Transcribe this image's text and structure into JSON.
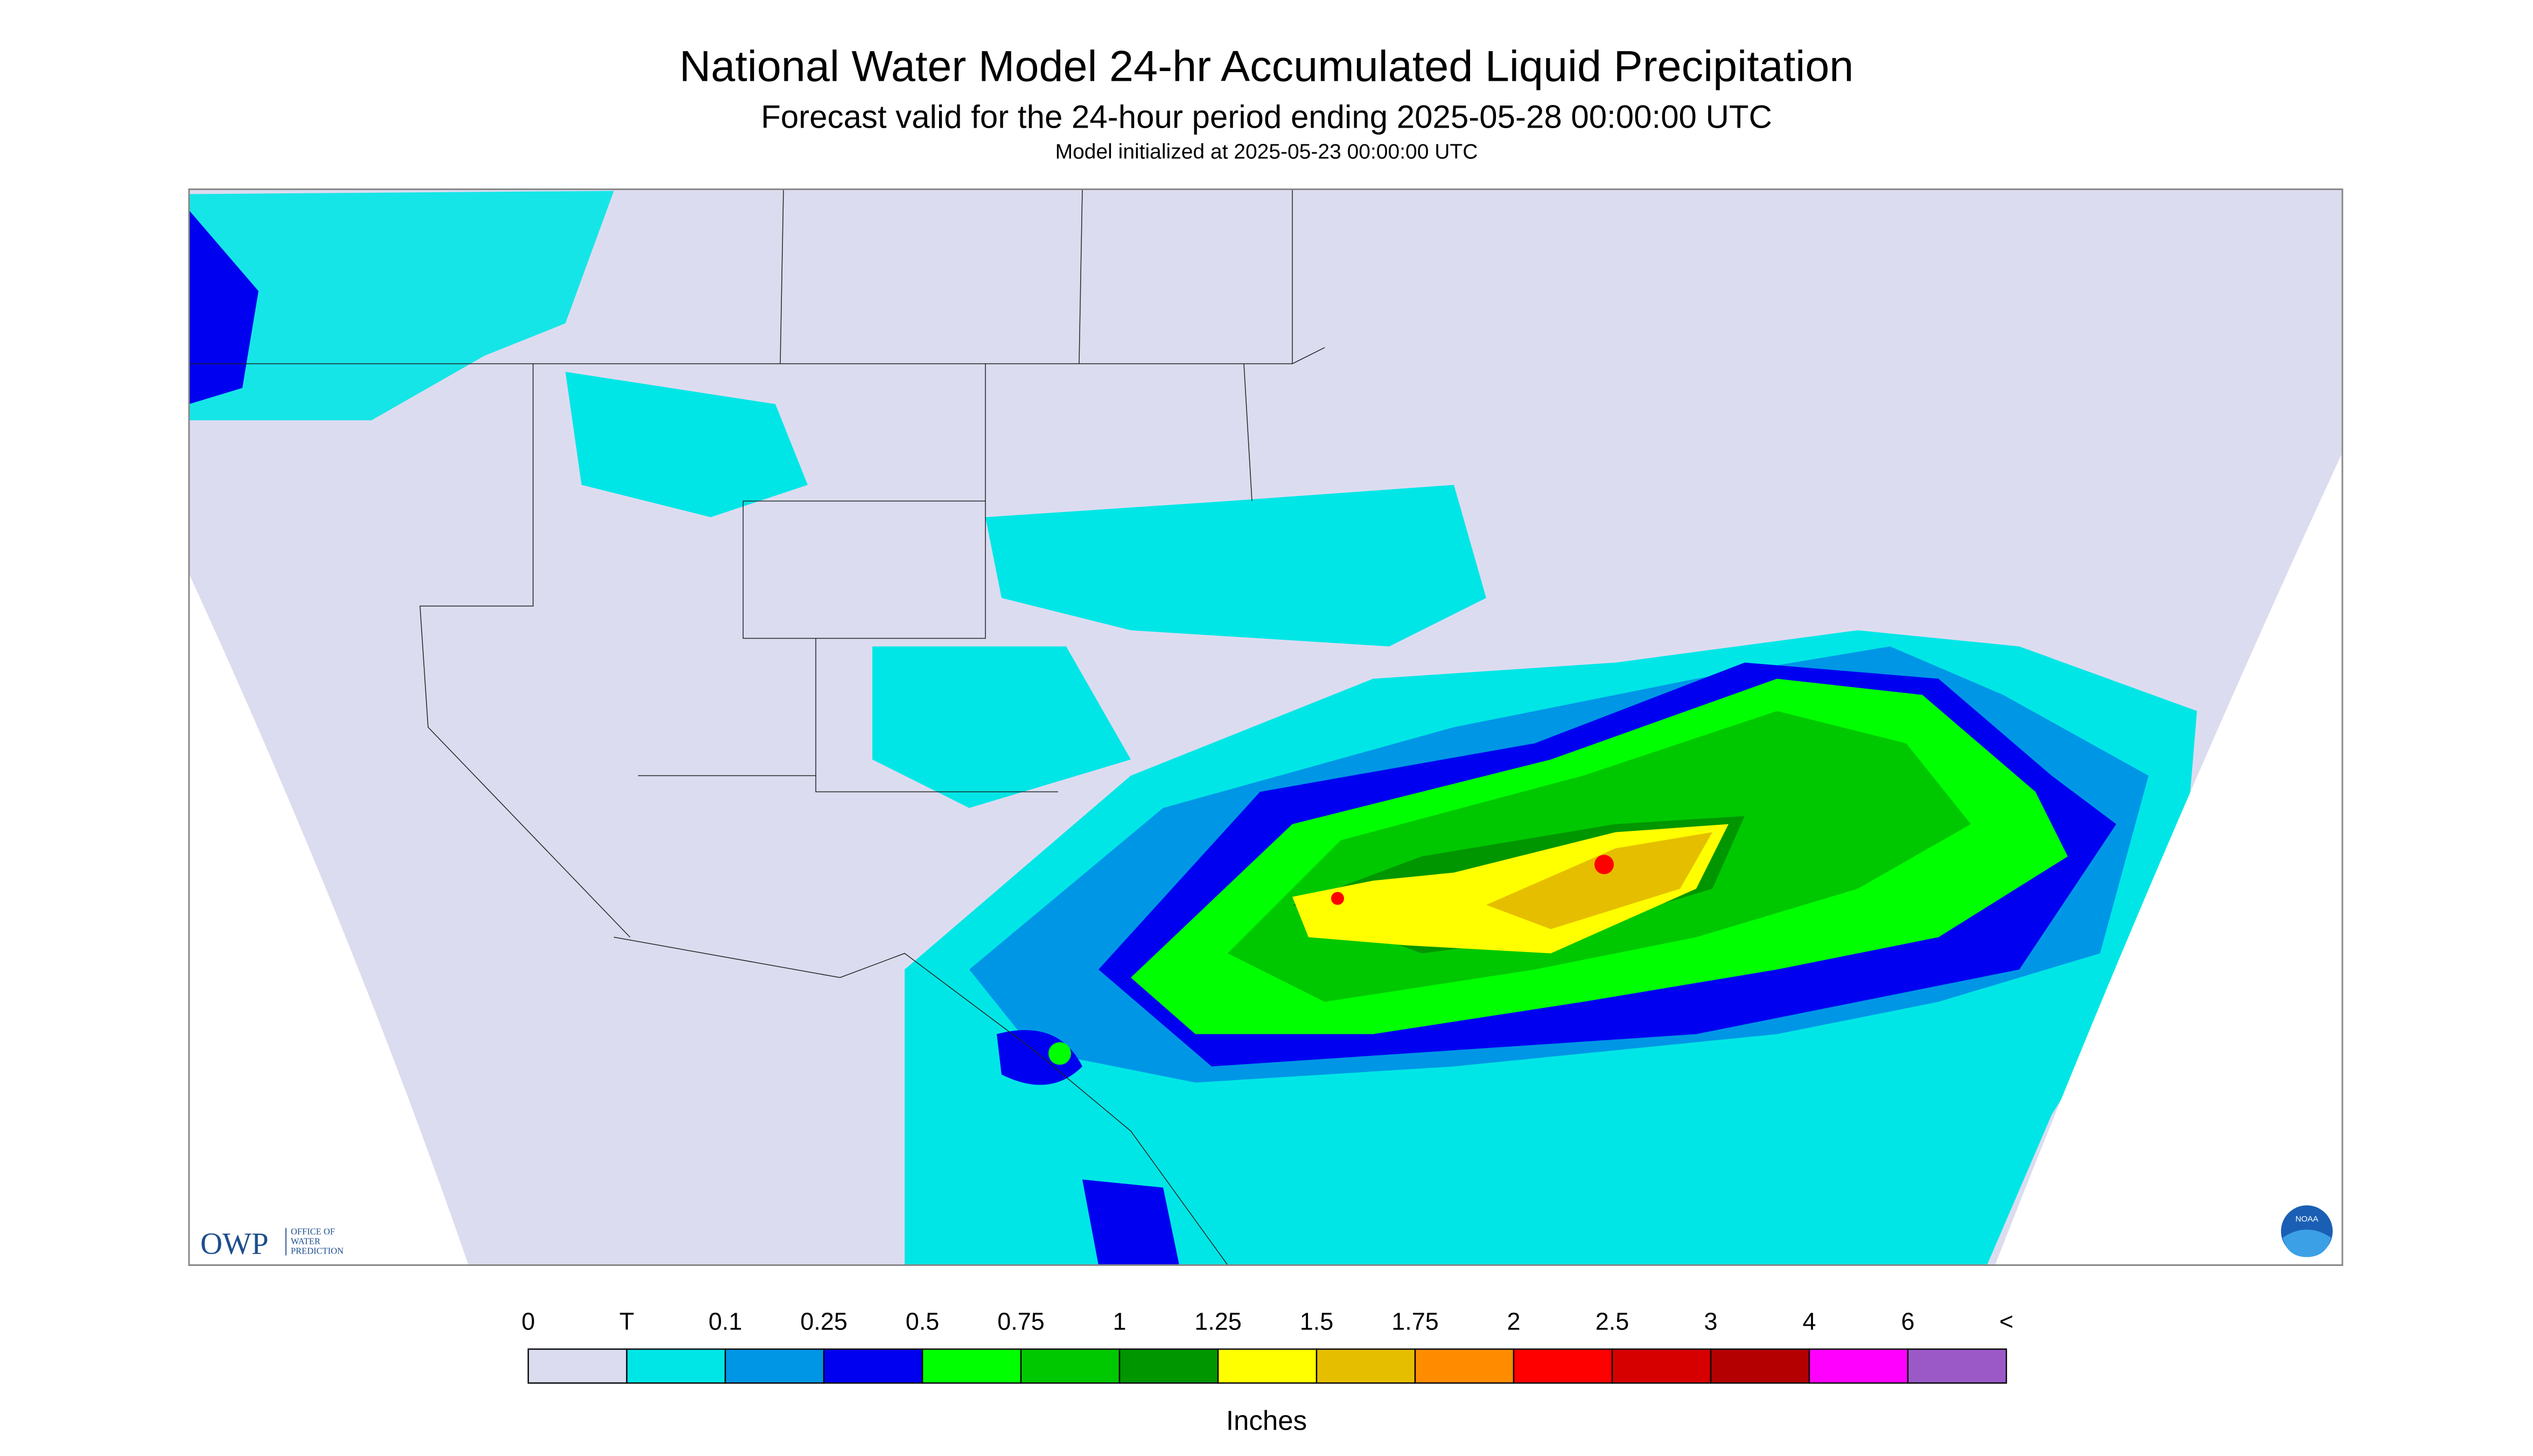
{
  "header": {
    "title": "National Water Model 24-hr Accumulated Liquid Precipitation",
    "subtitle": "Forecast valid for the 24-hour period ending 2025-05-28 00:00:00 UTC",
    "note": "Model initialized at 2025-05-23 00:00:00 UTC"
  },
  "legend": {
    "labels": [
      "0",
      "T",
      "0.1",
      "0.25",
      "0.5",
      "0.75",
      "1",
      "1.25",
      "1.5",
      "1.75",
      "2",
      "2.5",
      "3",
      "4",
      "6",
      "<"
    ],
    "colors": [
      "#dcdcf0",
      "#00e6e6",
      "#0096e6",
      "#0000f0",
      "#00ff00",
      "#00c800",
      "#009600",
      "#ffff00",
      "#e6be00",
      "#ff8c00",
      "#ff0000",
      "#d70000",
      "#b40000",
      "#ff00ff",
      "#9b59c8"
    ],
    "unit": "Inches"
  },
  "logos": {
    "owp": "OWP",
    "owp_text": [
      "OFFICE OF",
      "WATER",
      "PREDICTION"
    ],
    "noaa": "NOAA"
  }
}
